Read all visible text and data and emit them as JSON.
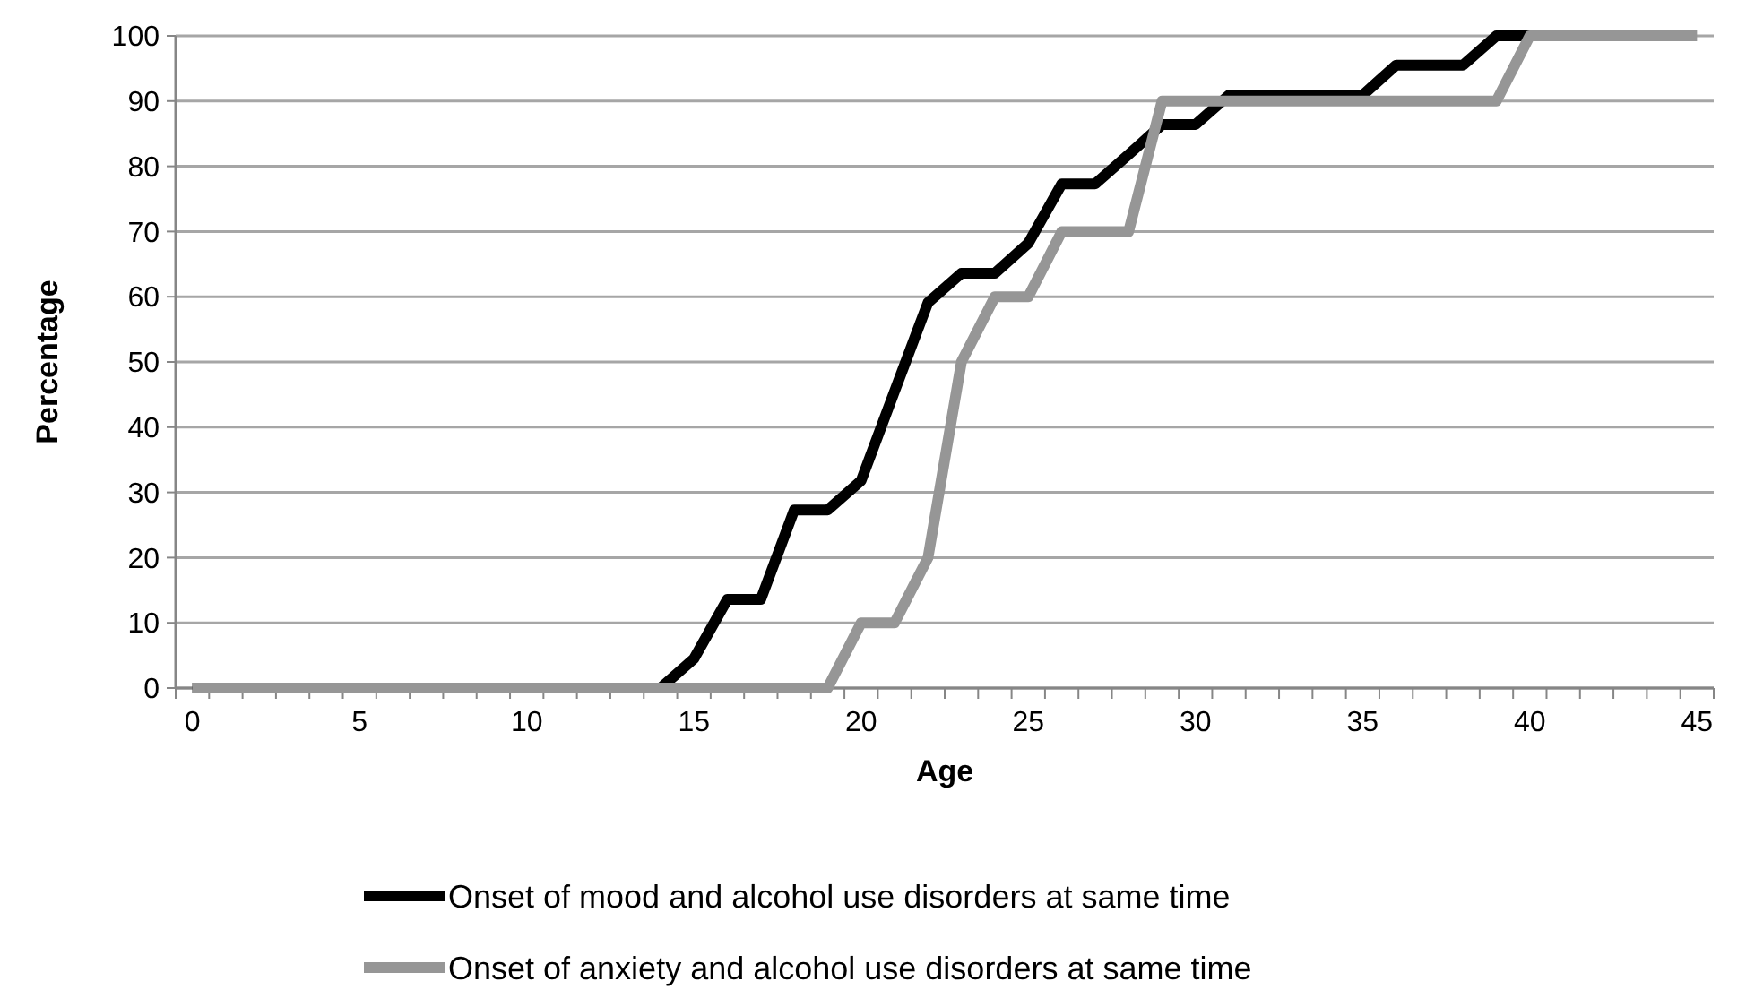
{
  "chart_data": {
    "type": "line",
    "xlabel": "Age",
    "ylabel": "Percentage",
    "x": [
      0,
      1,
      2,
      3,
      4,
      5,
      6,
      7,
      8,
      9,
      10,
      11,
      12,
      13,
      14,
      15,
      16,
      17,
      18,
      19,
      20,
      21,
      22,
      23,
      24,
      25,
      26,
      27,
      28,
      29,
      30,
      31,
      32,
      33,
      34,
      35,
      36,
      37,
      38,
      39,
      40,
      41,
      42,
      43,
      44,
      45
    ],
    "series": [
      {
        "name": "Onset of mood and alcohol use disorders at same time",
        "color": "#000000",
        "values": [
          0,
          0,
          0,
          0,
          0,
          0,
          0,
          0,
          0,
          0,
          0,
          0,
          0,
          0,
          0,
          4.5,
          13.6,
          13.6,
          27.3,
          27.3,
          31.8,
          45.5,
          59.1,
          63.6,
          63.6,
          68.2,
          77.3,
          77.3,
          81.8,
          86.4,
          86.4,
          90.9,
          90.9,
          90.9,
          90.9,
          90.9,
          95.5,
          95.5,
          95.5,
          100,
          100,
          null,
          null,
          null,
          null,
          null
        ]
      },
      {
        "name": "Onset of anxiety and alcohol use disorders at same time",
        "color": "#969696",
        "values": [
          0,
          0,
          0,
          0,
          0,
          0,
          0,
          0,
          0,
          0,
          0,
          0,
          0,
          0,
          0,
          0,
          0,
          0,
          0,
          0,
          10,
          10,
          20,
          50,
          60,
          60,
          70,
          70,
          70,
          90,
          90,
          90,
          90,
          90,
          90,
          90,
          90,
          90,
          90,
          90,
          100,
          100,
          100,
          100,
          100,
          100
        ]
      }
    ],
    "xlim": [
      -0.5,
      45.5
    ],
    "xticks": [
      0,
      5,
      10,
      15,
      20,
      25,
      30,
      35,
      40,
      45,
      {
        "value": -0.5,
        "label": null
      },
      {
        "value": 0.5,
        "label": null
      },
      {
        "value": 1.5,
        "label": null
      },
      {
        "value": 2.5,
        "label": null
      },
      {
        "value": 3.5,
        "label": null
      },
      {
        "value": 4.5,
        "label": null
      },
      {
        "value": 5.5,
        "label": null
      },
      {
        "value": 6.5,
        "label": null
      },
      {
        "value": 7.5,
        "label": null
      },
      {
        "value": 8.5,
        "label": null
      },
      {
        "value": 9.5,
        "label": null
      },
      {
        "value": 10.5,
        "label": null
      },
      {
        "value": 11.5,
        "label": null
      },
      {
        "value": 12.5,
        "label": null
      },
      {
        "value": 13.5,
        "label": null
      },
      {
        "value": 14.5,
        "label": null
      },
      {
        "value": 15.5,
        "label": null
      },
      {
        "value": 16.5,
        "label": null
      },
      {
        "value": 17.5,
        "label": null
      },
      {
        "value": 18.5,
        "label": null
      },
      {
        "value": 19.5,
        "label": null
      },
      {
        "value": 20.5,
        "label": null
      },
      {
        "value": 21.5,
        "label": null
      },
      {
        "value": 22.5,
        "label": null
      },
      {
        "value": 23.5,
        "label": null
      },
      {
        "value": 24.5,
        "label": null
      },
      {
        "value": 25.5,
        "label": null
      },
      {
        "value": 26.5,
        "label": null
      },
      {
        "value": 27.5,
        "label": null
      },
      {
        "value": 28.5,
        "label": null
      },
      {
        "value": 29.5,
        "label": null
      },
      {
        "value": 30.5,
        "label": null
      },
      {
        "value": 31.5,
        "label": null
      },
      {
        "value": 32.5,
        "label": null
      },
      {
        "value": 33.5,
        "label": null
      },
      {
        "value": 34.5,
        "label": null
      },
      {
        "value": 35.5,
        "label": null
      },
      {
        "value": 36.5,
        "label": null
      },
      {
        "value": 37.5,
        "label": null
      },
      {
        "value": 38.5,
        "label": null
      },
      {
        "value": 39.5,
        "label": null
      },
      {
        "value": 40.5,
        "label": null
      },
      {
        "value": 41.5,
        "label": null
      },
      {
        "value": 42.5,
        "label": null
      },
      {
        "value": 43.5,
        "label": null
      },
      {
        "value": 44.5,
        "label": null
      },
      {
        "value": 45.5,
        "label": null
      }
    ],
    "ylim": [
      0,
      100
    ],
    "yticks": [
      0,
      10,
      20,
      30,
      40,
      50,
      60,
      70,
      80,
      90,
      100
    ],
    "grid": "y",
    "legend": "bottom",
    "marker": "none",
    "line_style": "solid"
  }
}
